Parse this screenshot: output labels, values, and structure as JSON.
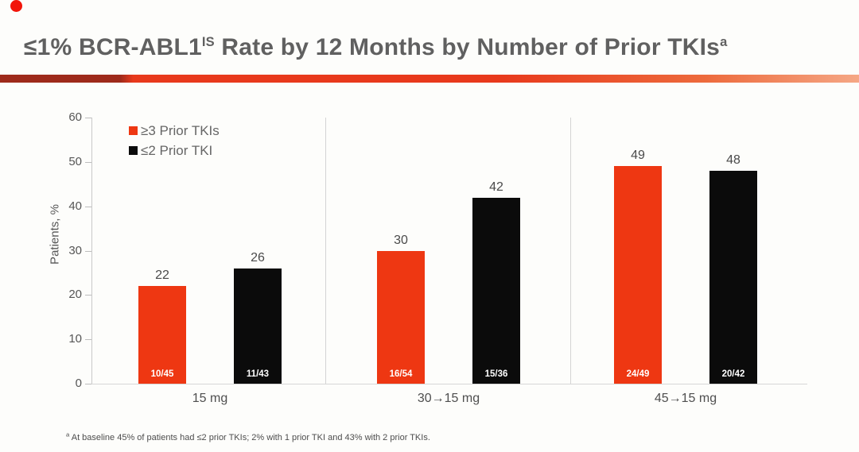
{
  "slide": {
    "title": {
      "prefix": "≤1% BCR-ABL1",
      "sup1": "IS",
      "middle": " Rate by 12 Months by Number of Prior TKIs",
      "sup2": "a"
    },
    "footnote": {
      "marker": "a",
      "text": " At baseline 45% of patients had ≤2 prior TKIs; 2% with 1 prior TKI and 43% with 2 prior TKIs."
    }
  },
  "colors": {
    "dot_red": "#F2150A",
    "title_gray": "#606060",
    "divider_dark": "#9E2A1B",
    "divider_bright": "#E8391C",
    "divider_mid": "#ED6A3C",
    "divider_light": "#F5A785",
    "accent_red": "#EE3712",
    "bar_black": "#0B0B0B"
  },
  "chart_data": {
    "type": "bar",
    "title": "≤1% BCR-ABL1 IS Rate by 12 Months by Number of Prior TKIs",
    "ylabel": "Patients, %",
    "xlabel": "",
    "ylim": [
      0,
      60
    ],
    "yticks": [
      0,
      10,
      20,
      30,
      40,
      50,
      60
    ],
    "grid": false,
    "legend_position": "upper-left",
    "legend": [
      {
        "label": "≥3 Prior TKIs",
        "color": "#EE3712"
      },
      {
        "label": "≤2 Prior TKI",
        "color": "#0B0B0B"
      }
    ],
    "categories": [
      "15 mg",
      "30→15 mg",
      "45→15 mg"
    ],
    "series": [
      {
        "name": "≥3 Prior TKIs",
        "values": [
          22,
          30,
          49
        ],
        "fractions": [
          "10/45",
          "16/54",
          "24/49"
        ]
      },
      {
        "name": "≤2 Prior TKI",
        "values": [
          26,
          42,
          48
        ],
        "fractions": [
          "11/43",
          "15/36",
          "20/42"
        ]
      }
    ]
  }
}
